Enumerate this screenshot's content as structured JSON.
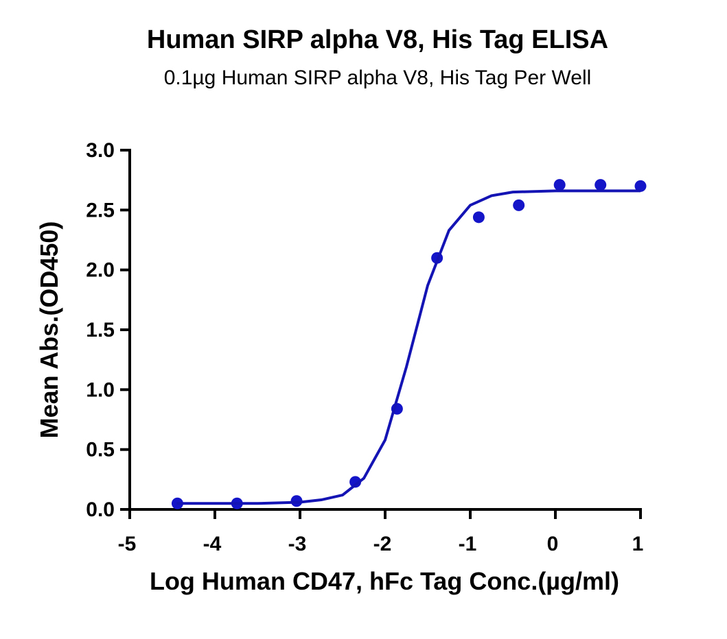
{
  "chart_data": {
    "type": "scatter",
    "title": "Human SIRP alpha V8, His Tag ELISA",
    "subtitle": "0.1µg Human SIRP alpha V8, His Tag Per Well",
    "x_label": "Log Human CD47, hFc Tag Conc.(µg/ml)",
    "y_label": "Mean Abs.(OD450)",
    "xlim": [
      -5,
      1
    ],
    "xticks": [
      -5,
      -4,
      -3,
      -2,
      -1,
      0,
      1
    ],
    "ylim": [
      0,
      3
    ],
    "yticks": [
      {
        "value": 0,
        "label": "0.0"
      },
      0.5,
      {
        "value": 1,
        "label": "1.0"
      },
      1.5,
      {
        "value": 2,
        "label": "2.0"
      },
      2.5,
      {
        "value": 3,
        "label": "3.0"
      }
    ],
    "series": [
      {
        "kind": "points",
        "color": "#1414c8",
        "x": [
          -4.44,
          -3.74,
          -3.04,
          -2.35,
          -1.86,
          -1.39,
          -0.9,
          -0.43,
          0.05,
          0.53,
          1.0
        ],
        "values": [
          0.05,
          0.05,
          0.07,
          0.23,
          0.84,
          2.1,
          2.44,
          2.54,
          2.71,
          2.71,
          2.7
        ]
      },
      {
        "kind": "line",
        "color": "#1414b4",
        "x": [
          -4.45,
          -4,
          -3.5,
          -3,
          -2.75,
          -2.5,
          -2.25,
          -2,
          -1.75,
          -1.5,
          -1.25,
          -1,
          -0.75,
          -0.5,
          0,
          0.5,
          1.0
        ],
        "values": [
          0.05,
          0.05,
          0.05,
          0.06,
          0.08,
          0.12,
          0.26,
          0.58,
          1.19,
          1.87,
          2.33,
          2.54,
          2.62,
          2.65,
          2.66,
          2.66,
          2.66
        ]
      }
    ]
  }
}
